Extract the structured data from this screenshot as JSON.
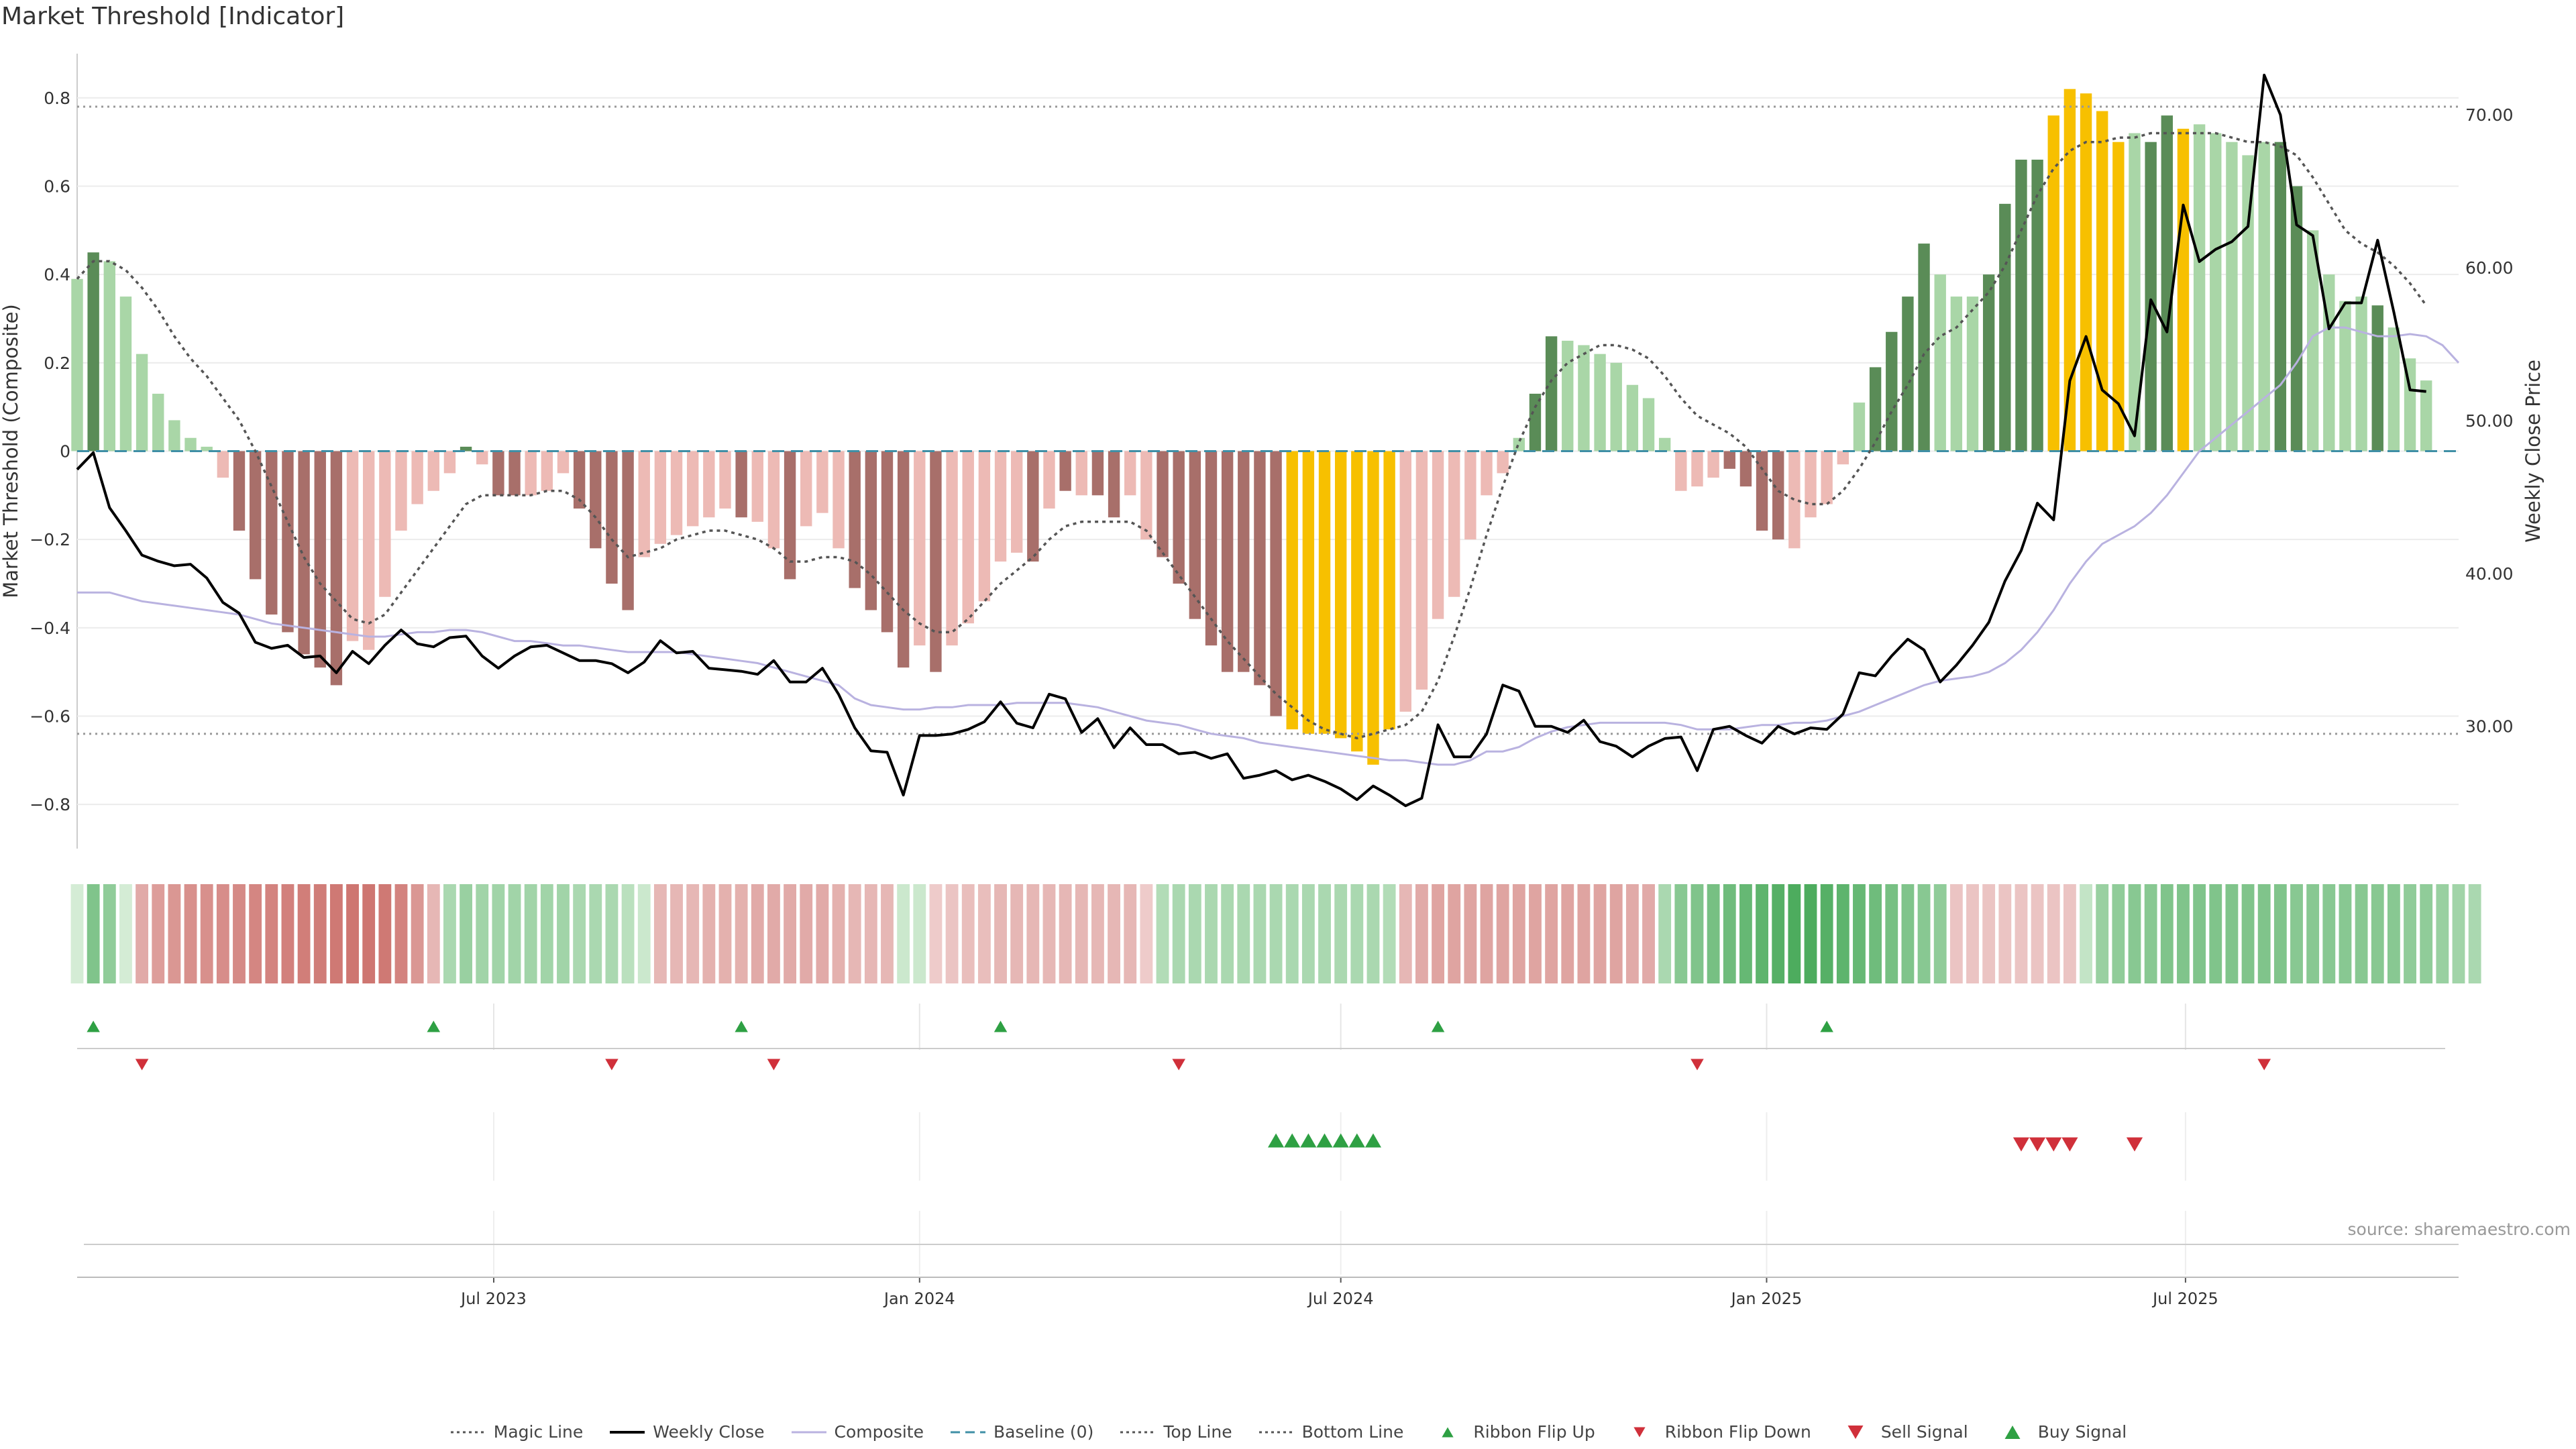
{
  "title": "Market Threshold [Indicator]",
  "source": "source: sharemaestro.com",
  "colors": {
    "bull_strong": "#5a8c57",
    "bull_light": "#a9d6a7",
    "bear_strong": "#a86f6a",
    "bear_light": "#edbab5",
    "extreme": "#f7c000",
    "magic": "#555555",
    "weekly": "#000000",
    "composite": "#b9b2e0",
    "baseline": "#3f8fa6",
    "level": "#999999",
    "signal_up": "#2ea043",
    "signal_down": "#d0303a"
  },
  "chart_data": {
    "type": "bar",
    "ylabel_left": "Market Threshold (Composite)",
    "ylabel_right": "Weekly Close Price",
    "ylim_left": [
      -0.9,
      0.9
    ],
    "ylim_right": [
      22,
      74
    ],
    "yticks_left": [
      "0.8",
      "0.6",
      "0.4",
      "0.2",
      "0",
      "−0.2",
      "−0.4",
      "−0.6",
      "−0.8"
    ],
    "ytick_values_left": [
      0.8,
      0.6,
      0.4,
      0.2,
      0,
      -0.2,
      -0.4,
      -0.6,
      -0.8
    ],
    "yticks_right": [
      "70.00",
      "60.00",
      "50.00",
      "40.00",
      "30.00"
    ],
    "ytick_values_right": [
      70,
      60,
      50,
      40,
      30
    ],
    "x_start": "2023-01-02",
    "x_end": "2025-10-27",
    "xticks": [
      "Jul 2023",
      "Jan 2024",
      "Jul 2024",
      "Jan 2025",
      "Jul 2025"
    ],
    "xtick_dates": [
      "2023-07-01",
      "2024-01-01",
      "2024-07-01",
      "2025-01-01",
      "2025-07-01"
    ],
    "top_line": 0.78,
    "bottom_line": -0.64,
    "baseline": 0,
    "composite_bars": [
      0.39,
      0.45,
      0.43,
      0.35,
      0.22,
      0.13,
      0.07,
      0.03,
      0.01,
      -0.06,
      -0.18,
      -0.29,
      -0.37,
      -0.41,
      -0.46,
      -0.49,
      -0.53,
      -0.43,
      -0.45,
      -0.33,
      -0.18,
      -0.12,
      -0.09,
      -0.05,
      0.01,
      -0.03,
      -0.1,
      -0.1,
      -0.1,
      -0.09,
      -0.05,
      -0.13,
      -0.22,
      -0.3,
      -0.36,
      -0.24,
      -0.21,
      -0.19,
      -0.17,
      -0.15,
      -0.13,
      -0.15,
      -0.16,
      -0.22,
      -0.29,
      -0.17,
      -0.14,
      -0.22,
      -0.31,
      -0.36,
      -0.41,
      -0.49,
      -0.44,
      -0.5,
      -0.44,
      -0.39,
      -0.34,
      -0.25,
      -0.23,
      -0.25,
      -0.13,
      -0.09,
      -0.1,
      -0.1,
      -0.15,
      -0.1,
      -0.2,
      -0.24,
      -0.3,
      -0.38,
      -0.44,
      -0.5,
      -0.5,
      -0.53,
      -0.6,
      -0.63,
      -0.64,
      -0.64,
      -0.65,
      -0.68,
      -0.71,
      -0.63,
      -0.59,
      -0.54,
      -0.38,
      -0.33,
      -0.2,
      -0.1,
      -0.05,
      0.03,
      0.13,
      0.26,
      0.25,
      0.24,
      0.22,
      0.2,
      0.15,
      0.12,
      0.03,
      -0.09,
      -0.08,
      -0.06,
      -0.04,
      -0.08,
      -0.18,
      -0.2,
      -0.22,
      -0.15,
      -0.12,
      -0.03,
      0.11,
      0.19,
      0.27,
      0.35,
      0.47,
      0.4,
      0.35,
      0.35,
      0.4,
      0.56,
      0.66,
      0.66,
      0.76,
      0.82,
      0.81,
      0.77,
      0.7,
      0.72,
      0.7,
      0.76,
      0.73,
      0.74,
      0.72,
      0.7,
      0.67,
      0.7,
      0.7,
      0.6,
      0.5,
      0.4,
      0.34,
      0.35,
      0.33,
      0.28,
      0.21,
      0.16
    ],
    "bar_classes": [
      "BL",
      "BS",
      "BL",
      "BL",
      "BL",
      "BL",
      "BL",
      "BL",
      "BL",
      "RL",
      "RS",
      "RS",
      "RS",
      "RS",
      "RS",
      "RS",
      "RS",
      "RL",
      "RL",
      "RL",
      "RL",
      "RL",
      "RL",
      "RL",
      "BS",
      "RL",
      "RS",
      "RS",
      "RL",
      "RL",
      "RL",
      "RS",
      "RS",
      "RS",
      "RS",
      "RL",
      "RL",
      "RL",
      "RL",
      "RL",
      "RL",
      "RS",
      "RL",
      "RL",
      "RS",
      "RL",
      "RL",
      "RL",
      "RS",
      "RS",
      "RS",
      "RS",
      "RL",
      "RS",
      "RL",
      "RL",
      "RL",
      "RL",
      "RL",
      "RS",
      "RL",
      "RS",
      "RL",
      "RS",
      "RS",
      "RL",
      "RL",
      "RS",
      "RS",
      "RS",
      "RS",
      "RS",
      "RS",
      "RS",
      "RS",
      "E",
      "E",
      "E",
      "E",
      "E",
      "E",
      "E",
      "RL",
      "RL",
      "RL",
      "RL",
      "RL",
      "RL",
      "RL",
      "BL",
      "BS",
      "BS",
      "BL",
      "BL",
      "BL",
      "BL",
      "BL",
      "BL",
      "BL",
      "RL",
      "RL",
      "RL",
      "RS",
      "RS",
      "RS",
      "RS",
      "RL",
      "RL",
      "RL",
      "RL",
      "BL",
      "BS",
      "BS",
      "BS",
      "BS",
      "BL",
      "BL",
      "BL",
      "BS",
      "BS",
      "BS",
      "BS",
      "E",
      "E",
      "E",
      "E",
      "E",
      "BL",
      "BS",
      "BS",
      "E",
      "BL",
      "BL",
      "BL",
      "BL",
      "BL",
      "BS",
      "BS",
      "BL",
      "BL",
      "BL",
      "BL",
      "BS",
      "BL",
      "BL",
      "BL"
    ],
    "series": [
      {
        "name": "Magic Line",
        "values": [
          0.39,
          0.43,
          0.43,
          0.41,
          0.37,
          0.32,
          0.26,
          0.21,
          0.17,
          0.12,
          0.07,
          0.0,
          -0.08,
          -0.16,
          -0.24,
          -0.3,
          -0.34,
          -0.38,
          -0.39,
          -0.37,
          -0.32,
          -0.27,
          -0.22,
          -0.17,
          -0.12,
          -0.1,
          -0.1,
          -0.1,
          -0.1,
          -0.09,
          -0.09,
          -0.11,
          -0.15,
          -0.2,
          -0.24,
          -0.23,
          -0.22,
          -0.2,
          -0.19,
          -0.18,
          -0.18,
          -0.19,
          -0.2,
          -0.22,
          -0.25,
          -0.25,
          -0.24,
          -0.24,
          -0.25,
          -0.28,
          -0.32,
          -0.36,
          -0.39,
          -0.41,
          -0.41,
          -0.38,
          -0.34,
          -0.3,
          -0.27,
          -0.24,
          -0.2,
          -0.17,
          -0.16,
          -0.16,
          -0.16,
          -0.16,
          -0.18,
          -0.23,
          -0.28,
          -0.33,
          -0.38,
          -0.43,
          -0.47,
          -0.51,
          -0.55,
          -0.58,
          -0.61,
          -0.63,
          -0.64,
          -0.65,
          -0.64,
          -0.63,
          -0.62,
          -0.59,
          -0.52,
          -0.42,
          -0.31,
          -0.19,
          -0.08,
          0.02,
          0.1,
          0.16,
          0.2,
          0.22,
          0.24,
          0.24,
          0.23,
          0.21,
          0.17,
          0.12,
          0.08,
          0.06,
          0.04,
          0.01,
          -0.04,
          -0.09,
          -0.11,
          -0.12,
          -0.12,
          -0.09,
          -0.04,
          0.02,
          0.09,
          0.15,
          0.22,
          0.26,
          0.28,
          0.32,
          0.36,
          0.42,
          0.5,
          0.58,
          0.64,
          0.68,
          0.7,
          0.7,
          0.71,
          0.71,
          0.72,
          0.72,
          0.72,
          0.72,
          0.72,
          0.71,
          0.7,
          0.7,
          0.69,
          0.67,
          0.62,
          0.56,
          0.5,
          0.47,
          0.45,
          0.42,
          0.38,
          0.33
        ]
      },
      {
        "name": "Weekly Close",
        "values": [
          46.8,
          47.9,
          44.3,
          42.8,
          41.2,
          40.8,
          40.5,
          40.6,
          39.7,
          38.1,
          37.4,
          35.5,
          35.1,
          35.3,
          34.5,
          34.6,
          33.5,
          34.9,
          34.1,
          35.3,
          36.3,
          35.4,
          35.2,
          35.8,
          35.9,
          34.6,
          33.8,
          34.6,
          35.2,
          35.3,
          34.8,
          34.3,
          34.3,
          34.1,
          33.5,
          34.2,
          35.6,
          34.8,
          34.9,
          33.8,
          33.7,
          33.6,
          33.4,
          34.3,
          32.9,
          32.9,
          33.8,
          32.1,
          29.9,
          28.4,
          28.3,
          25.5,
          29.4,
          29.4,
          29.5,
          29.8,
          30.3,
          31.6,
          30.2,
          29.9,
          32.1,
          31.8,
          29.6,
          30.5,
          28.6,
          29.9,
          28.8,
          28.8,
          28.2,
          28.3,
          27.9,
          28.2,
          26.6,
          26.8,
          27.1,
          26.5,
          26.8,
          26.4,
          25.9,
          25.2,
          26.1,
          25.5,
          24.8,
          25.3,
          30.1,
          28.0,
          28.0,
          29.5,
          32.7,
          32.3,
          30.0,
          30.0,
          29.6,
          30.4,
          29.0,
          28.7,
          28.0,
          28.7,
          29.2,
          29.3,
          27.1,
          29.8,
          30.0,
          29.4,
          28.9,
          30.0,
          29.5,
          29.9,
          29.8,
          30.8,
          33.5,
          33.3,
          34.6,
          35.7,
          35.0,
          32.9,
          34.0,
          35.3,
          36.8,
          39.5,
          41.5,
          44.6,
          43.5,
          52.6,
          55.5,
          52.0,
          51.1,
          49.0,
          57.9,
          55.8,
          64.1,
          60.4,
          61.2,
          61.7,
          62.7,
          72.6,
          70.0,
          62.8,
          62.1,
          56.0,
          57.7,
          57.7,
          61.8,
          57.1,
          52.0,
          51.9
        ]
      },
      {
        "name": "Composite",
        "values": [
          -0.32,
          -0.32,
          -0.32,
          -0.33,
          -0.34,
          -0.345,
          -0.35,
          -0.355,
          -0.36,
          -0.365,
          -0.37,
          -0.38,
          -0.39,
          -0.395,
          -0.4,
          -0.405,
          -0.41,
          -0.415,
          -0.42,
          -0.42,
          -0.415,
          -0.41,
          -0.41,
          -0.405,
          -0.405,
          -0.41,
          -0.42,
          -0.43,
          -0.43,
          -0.435,
          -0.44,
          -0.44,
          -0.445,
          -0.45,
          -0.455,
          -0.455,
          -0.455,
          -0.455,
          -0.46,
          -0.465,
          -0.47,
          -0.475,
          -0.48,
          -0.49,
          -0.5,
          -0.51,
          -0.52,
          -0.53,
          -0.56,
          -0.575,
          -0.58,
          -0.585,
          -0.585,
          -0.58,
          -0.58,
          -0.575,
          -0.575,
          -0.575,
          -0.57,
          -0.57,
          -0.57,
          -0.57,
          -0.575,
          -0.58,
          -0.59,
          -0.6,
          -0.61,
          -0.615,
          -0.62,
          -0.63,
          -0.64,
          -0.645,
          -0.65,
          -0.66,
          -0.665,
          -0.67,
          -0.675,
          -0.68,
          -0.685,
          -0.69,
          -0.695,
          -0.7,
          -0.7,
          -0.705,
          -0.71,
          -0.71,
          -0.7,
          -0.68,
          -0.68,
          -0.67,
          -0.65,
          -0.635,
          -0.625,
          -0.62,
          -0.615,
          -0.615,
          -0.615,
          -0.615,
          -0.615,
          -0.62,
          -0.63,
          -0.63,
          -0.63,
          -0.625,
          -0.62,
          -0.62,
          -0.615,
          -0.615,
          -0.61,
          -0.6,
          -0.59,
          -0.575,
          -0.56,
          -0.545,
          -0.53,
          -0.52,
          -0.515,
          -0.51,
          -0.5,
          -0.48,
          -0.45,
          -0.41,
          -0.36,
          -0.3,
          -0.25,
          -0.21,
          -0.19,
          -0.17,
          -0.14,
          -0.1,
          -0.05,
          0.0,
          0.03,
          0.06,
          0.09,
          0.12,
          0.15,
          0.2,
          0.26,
          0.28,
          0.28,
          0.27,
          0.26,
          0.26,
          0.265,
          0.26,
          0.24,
          0.2
        ]
      },
      {
        "name": "Baseline (0)",
        "values": [
          0
        ]
      },
      {
        "name": "Top Line",
        "values": [
          0.78
        ]
      },
      {
        "name": "Bottom Line",
        "values": [
          -0.64
        ]
      }
    ],
    "ribbon_values": [
      0.05,
      0.55,
      0.45,
      0.05,
      -0.4,
      -0.5,
      -0.55,
      -0.6,
      -0.6,
      -0.62,
      -0.65,
      -0.68,
      -0.7,
      -0.72,
      -0.74,
      -0.75,
      -0.78,
      -0.8,
      -0.8,
      -0.78,
      -0.7,
      -0.55,
      -0.3,
      0.3,
      0.4,
      0.35,
      0.35,
      0.35,
      0.35,
      0.35,
      0.35,
      0.3,
      0.3,
      0.3,
      0.2,
      0.1,
      -0.3,
      -0.3,
      -0.3,
      -0.35,
      -0.35,
      -0.35,
      -0.4,
      -0.4,
      -0.4,
      -0.4,
      -0.4,
      -0.35,
      -0.3,
      -0.3,
      -0.3,
      0.1,
      0.1,
      -0.15,
      -0.2,
      -0.25,
      -0.25,
      -0.3,
      -0.3,
      -0.3,
      -0.3,
      -0.3,
      -0.3,
      -0.3,
      -0.3,
      -0.3,
      -0.15,
      0.25,
      0.3,
      0.3,
      0.3,
      0.3,
      0.3,
      0.3,
      0.3,
      0.3,
      0.3,
      0.3,
      0.3,
      0.3,
      0.3,
      0.25,
      -0.3,
      -0.4,
      -0.45,
      -0.45,
      -0.45,
      -0.45,
      -0.45,
      -0.45,
      -0.45,
      -0.45,
      -0.45,
      -0.45,
      -0.45,
      -0.45,
      -0.4,
      -0.4,
      0.3,
      0.5,
      0.55,
      0.6,
      0.65,
      0.7,
      0.75,
      0.8,
      0.85,
      0.85,
      0.8,
      0.75,
      0.7,
      0.65,
      0.6,
      0.55,
      0.5,
      0.45,
      -0.2,
      -0.2,
      -0.2,
      -0.2,
      -0.2,
      -0.2,
      -0.2,
      -0.2,
      0.15,
      0.4,
      0.45,
      0.5,
      0.5,
      0.55,
      0.55,
      0.55,
      0.55,
      0.55,
      0.55,
      0.55,
      0.55,
      0.5,
      0.5,
      0.5,
      0.5,
      0.5,
      0.5,
      0.5,
      0.45,
      0.45,
      0.4,
      0.35,
      0.3
    ],
    "ribbon_flip_up_weeks": [
      1,
      22,
      41,
      57,
      84,
      108
    ],
    "ribbon_flip_down_weeks": [
      4,
      33,
      43,
      68,
      100,
      135
    ],
    "buy_signal_weeks": [
      74,
      75,
      76,
      77,
      78,
      79,
      80
    ],
    "sell_signal_weeks": [
      120,
      121,
      122,
      123,
      127
    ]
  },
  "legend": [
    {
      "label": "Magic Line",
      "icon": "dotted-line"
    },
    {
      "label": "Weekly Close",
      "icon": "solid-line"
    },
    {
      "label": "Composite",
      "icon": "light-line"
    },
    {
      "label": "Baseline (0)",
      "icon": "dashed-line"
    },
    {
      "label": "Top Line",
      "icon": "dotted-line"
    },
    {
      "label": "Bottom Line",
      "icon": "dotted-line"
    },
    {
      "label": "Ribbon Flip Up",
      "icon": "triangle-up-small"
    },
    {
      "label": "Ribbon Flip Down",
      "icon": "triangle-down-small"
    },
    {
      "label": "Sell Signal",
      "icon": "triangle-down-large"
    },
    {
      "label": "Buy Signal",
      "icon": "triangle-up-large"
    }
  ]
}
